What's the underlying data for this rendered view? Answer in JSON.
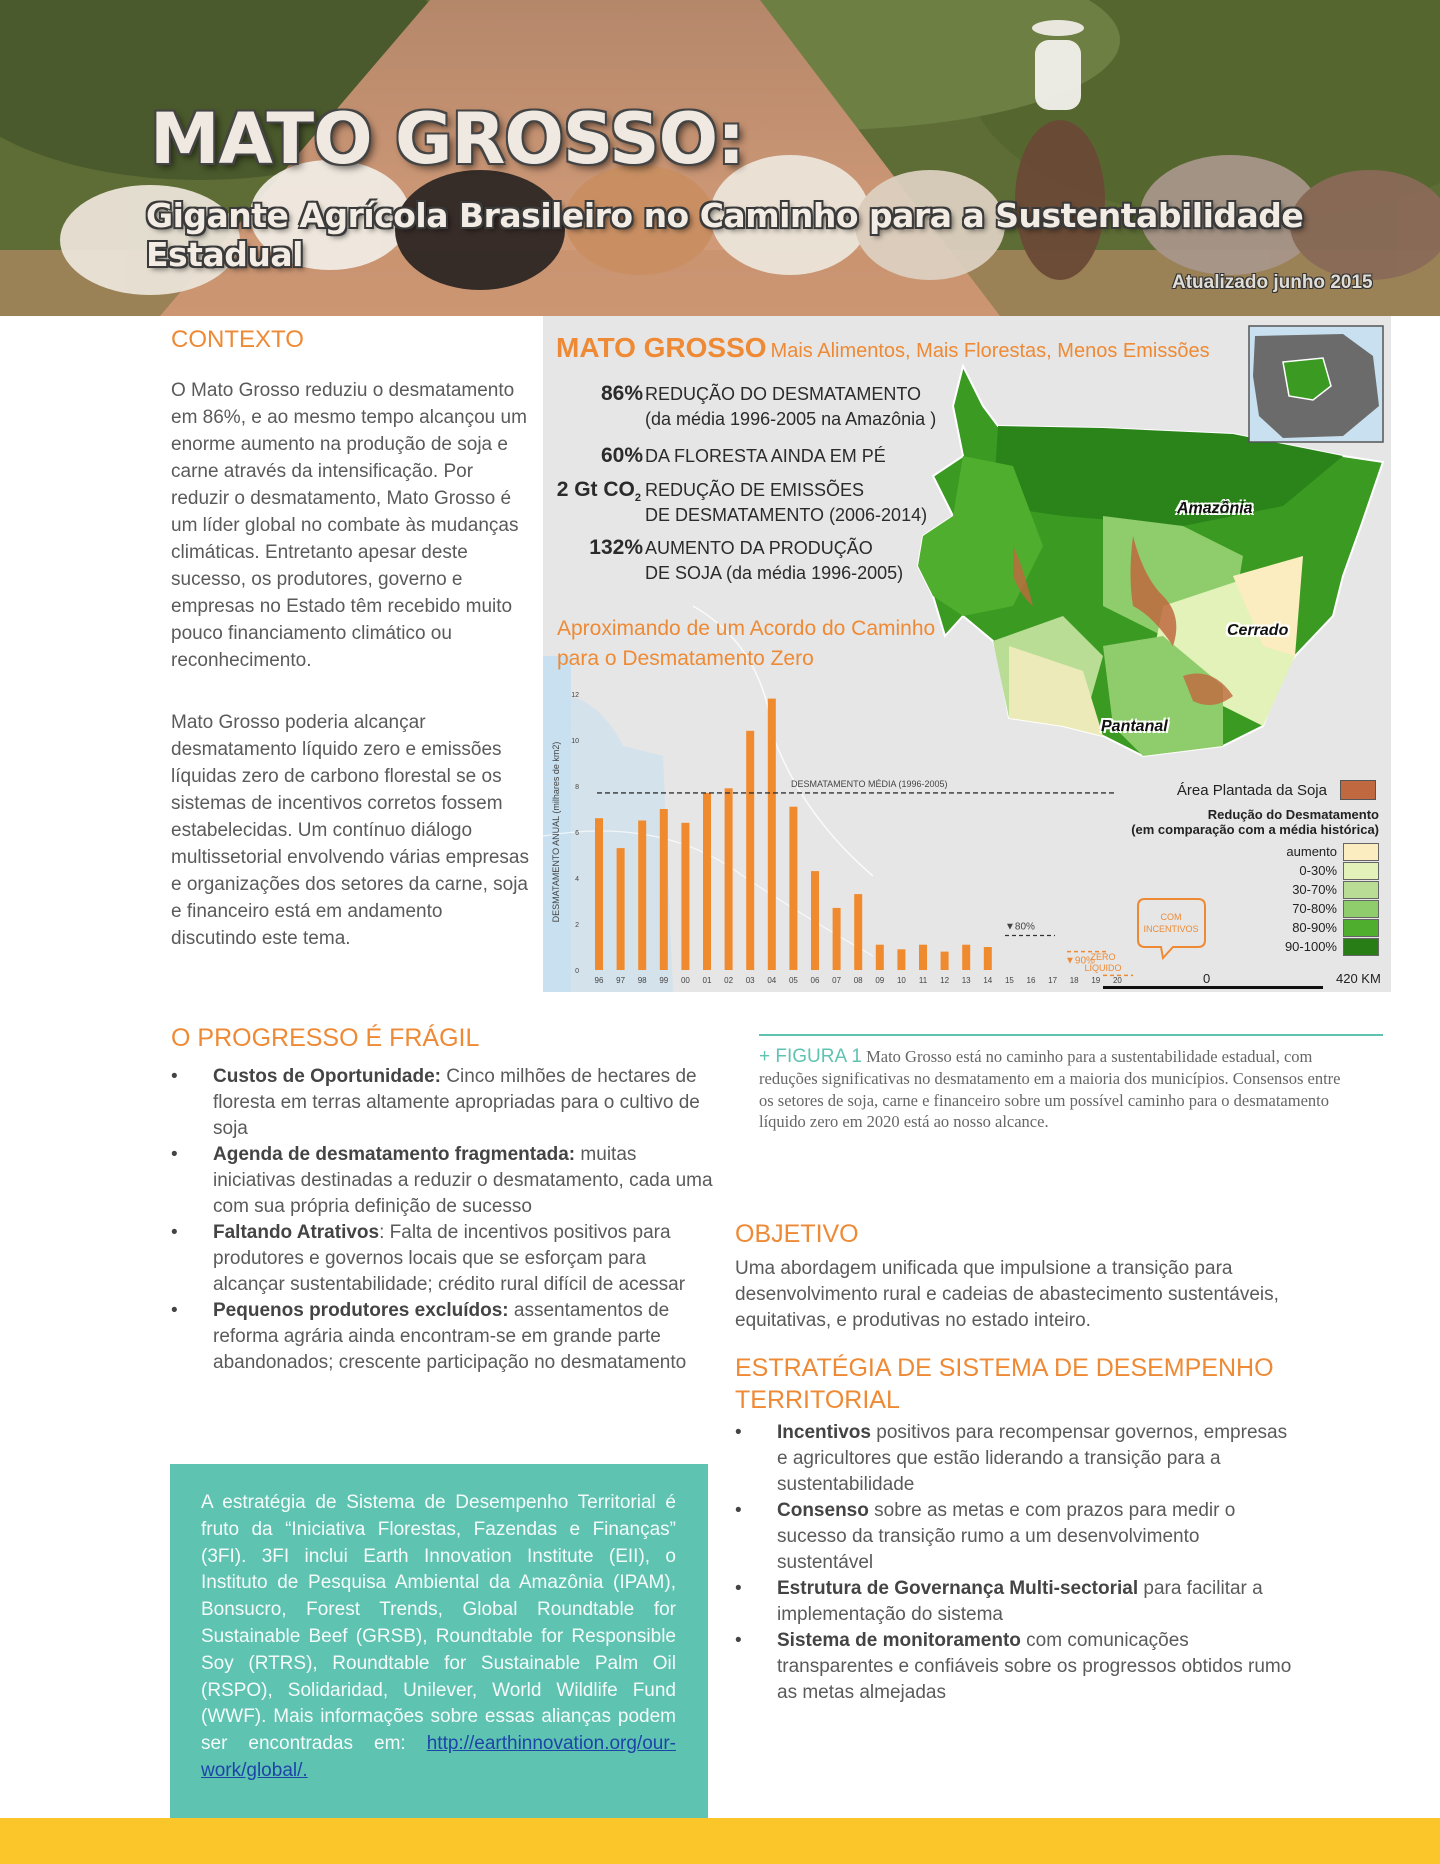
{
  "hero": {
    "title": "MATO GROSSO:",
    "subtitle": "Gigante Agrícola Brasileiro no Caminho para a Sustentabilidade Estadual",
    "updated": "Atualizado junho 2015"
  },
  "contexto": {
    "heading": "CONTEXTO",
    "p1": "O Mato Grosso reduziu o desmatamento em 86%, e ao mesmo tempo alcançou um enorme aumento na produção de soja e carne através da intensificação. Por reduzir o desmatamento, Mato Grosso é um líder global no combate às mudanças climáticas. Entretanto apesar deste sucesso, os produtores, governo e empresas no Estado têm recebido muito pouco financiamento climático ou reconhecimento.",
    "p2": "Mato Grosso poderia alcançar desmatamento líquido zero e emissões líquidas zero de carbono florestal se os sistemas de incentivos corretos fossem estabelecidas. Um contínuo diálogo multissetorial envolvendo várias empresas e organizações dos setores da carne, soja e financeiro está em andamento discutindo este tema."
  },
  "infographic": {
    "title": "MATO GROSSO",
    "tagline": "Mais Alimentos, Mais Florestas, Menos Emissões",
    "stats": [
      {
        "num": "86%",
        "line1": "REDUÇÃO DO DESMATAMENTO",
        "line2": "(da média 1996-2005 na Amazônia )"
      },
      {
        "num": "60%",
        "line1": "DA FLORESTA AINDA EM PÉ",
        "line2": ""
      },
      {
        "num": "2 Gt CO",
        "sub": "2",
        "line1": "REDUÇÃO DE EMISSÕES",
        "line2": "DE DESMATAMENTO (2006-2014)"
      },
      {
        "num": "132%",
        "line1": "AUMENTO DA PRODUÇÃO",
        "line2": "DE SOJA (da média 1996-2005)"
      }
    ],
    "approach_line1": "Aproximando de um Acordo do Caminho",
    "approach_line2": "para o Desmatamento Zero",
    "regions": {
      "amazonia": "Amazônia",
      "cerrado": "Cerrado",
      "pantanal": "Pantanal"
    },
    "legend": {
      "soy": "Área Plantada da Soja",
      "reduction_title1": "Redução do Desmatamento",
      "reduction_title2": "(em comparação com a média histórica)",
      "items": [
        "aumento",
        "0-30%",
        "30-70%",
        "70-80%",
        "80-90%",
        "90-100%"
      ],
      "colors": [
        "#fbedc0",
        "#e2f2b8",
        "#b9dd95",
        "#8fcc6c",
        "#4fae2e",
        "#287d16"
      ],
      "soy_color": "#c0683f"
    },
    "scale": {
      "start": "0",
      "end": "420 KM"
    }
  },
  "chart_data": {
    "type": "bar",
    "ylabel": "DESMATAMENTO ANUAL (milhares de km2)",
    "ylim": [
      0,
      12
    ],
    "yticks": [
      "0",
      "2",
      "4",
      "6",
      "8",
      "10",
      "12"
    ],
    "categories": [
      "96",
      "97",
      "98",
      "99",
      "00",
      "01",
      "02",
      "03",
      "04",
      "05",
      "06",
      "07",
      "08",
      "09",
      "10",
      "11",
      "12",
      "13",
      "14",
      "15",
      "16",
      "17",
      "18",
      "19",
      "20"
    ],
    "values": [
      6.6,
      5.3,
      6.5,
      7.0,
      6.4,
      7.7,
      7.9,
      10.4,
      11.8,
      7.1,
      4.3,
      2.7,
      3.3,
      1.1,
      0.9,
      1.1,
      0.8,
      1.1,
      1.0,
      null,
      null,
      null,
      null,
      null,
      null
    ],
    "reference_line": {
      "label": "DESMATAMENTO MÉDIA (1996-2005)",
      "value": 7.7
    },
    "annotations": {
      "pct80": "▼80%",
      "pct90": "▼90%",
      "zero1": "ZERO",
      "zero2": "LÍQUIDO",
      "incentives1": "COM",
      "incentives2": "INCENTIVOS"
    },
    "bar_color": "#f08a2e"
  },
  "progresso": {
    "heading": "O PROGRESSO É FRÁGIL",
    "items": [
      {
        "bold": "Custos de Oportunidade:",
        "text": " Cinco milhões de hectares de floresta em terras altamente apropriadas para o cultivo de soja"
      },
      {
        "bold": "Agenda de desmatamento fragmentada:",
        "text": " muitas iniciativas destinadas a reduzir o desmatamento, cada uma com sua própria definição de sucesso"
      },
      {
        "bold": "Faltando Atrativos",
        "text": ": Falta de incentivos positivos para produtores e governos locais que se esforçam para alcançar sustentabilidade; crédito rural difícil de acessar"
      },
      {
        "bold": "Pequenos produtores excluídos:",
        "text": "  assentamentos de reforma agrária ainda encontram-se em grande parte abandonados; crescente participação no desmatamento"
      }
    ]
  },
  "teal_box": {
    "text": "A estratégia de Sistema de Desempenho Territorial é fruto da “Iniciativa Florestas, Fazendas e Finanças” (3FI). 3FI inclui Earth Innovation Institute (EII), o Instituto de Pesquisa Ambiental da Amazônia (IPAM), Bonsucro, Forest Trends, Global Roundtable for Sustainable Beef (GRSB), Roundtable for Responsible Soy (RTRS), Roundtable for Sustainable Palm Oil (RSPO), Solidaridad, Unilever, World Wildlife Fund (WWF).  Mais informações sobre essas alianças podem ser encontradas em:  ",
    "link": "http://earthinnovation.org/our-work/global/."
  },
  "figure": {
    "label": "+ FIGURA 1",
    "caption": " Mato Grosso está no caminho para a sustentabilidade estadual, com reduções significativas no desmatamento em a maioria dos municípios. Consensos entre os setores de soja, carne e financeiro sobre um possível caminho para o desmatamento líquido zero em 2020 está ao nosso alcance."
  },
  "objetivo": {
    "heading": "OBJETIVO",
    "text": "Uma abordagem unificada que impulsione a transição para desenvolvimento rural e cadeias de abastecimento sustentáveis, equitativas, e produtivas no estado inteiro."
  },
  "estrategia": {
    "heading": "ESTRATÉGIA DE SISTEMA DE DESEMPENHO TERRITORIAL",
    "items": [
      {
        "bold": "Incentivos",
        "text": " positivos para recompensar governos, empresas e agricultores que estão liderando a transição para a sustentabilidade"
      },
      {
        "bold": "Consenso",
        "text": " sobre as metas e com prazos para medir o sucesso da transição rumo a um desenvolvimento sustentável"
      },
      {
        "bold": "Estrutura de Governança Multi-sectorial",
        "text": " para facilitar a implementação do sistema"
      },
      {
        "bold": "Sistema de monitoramento",
        "text": " com comunicações transparentes e confiáveis sobre os progressos obtidos rumo as metas almejadas"
      }
    ]
  }
}
